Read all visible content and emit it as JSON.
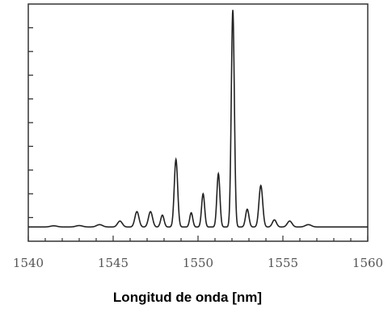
{
  "chart_data": {
    "type": "line",
    "title": "",
    "xlabel": "Longitud de onda [nm]",
    "ylabel": "",
    "xlim": [
      1540,
      1560
    ],
    "ylim": [
      0,
      1
    ],
    "grid": false,
    "x_ticks": [
      1540,
      1545,
      1550,
      1555,
      1560
    ],
    "x_tick_labels": [
      "1540",
      "1545",
      "1550",
      "1555",
      "1560"
    ],
    "y_tick_count": 9,
    "baseline": 0.06,
    "series": [
      {
        "color": "#222222",
        "peaks": [
          {
            "x": 1541.5,
            "y": 0.065,
            "w": 0.2
          },
          {
            "x": 1543.0,
            "y": 0.066,
            "w": 0.2
          },
          {
            "x": 1544.2,
            "y": 0.07,
            "w": 0.18
          },
          {
            "x": 1545.4,
            "y": 0.085,
            "w": 0.14
          },
          {
            "x": 1546.4,
            "y": 0.125,
            "w": 0.12
          },
          {
            "x": 1547.2,
            "y": 0.125,
            "w": 0.12
          },
          {
            "x": 1547.9,
            "y": 0.11,
            "w": 0.1
          },
          {
            "x": 1548.7,
            "y": 0.345,
            "w": 0.1
          },
          {
            "x": 1549.6,
            "y": 0.12,
            "w": 0.09
          },
          {
            "x": 1550.3,
            "y": 0.2,
            "w": 0.09
          },
          {
            "x": 1551.2,
            "y": 0.285,
            "w": 0.09
          },
          {
            "x": 1552.05,
            "y": 0.975,
            "w": 0.09
          },
          {
            "x": 1552.9,
            "y": 0.135,
            "w": 0.1
          },
          {
            "x": 1553.7,
            "y": 0.235,
            "w": 0.11
          },
          {
            "x": 1554.5,
            "y": 0.09,
            "w": 0.12
          },
          {
            "x": 1555.4,
            "y": 0.085,
            "w": 0.14
          },
          {
            "x": 1556.5,
            "y": 0.07,
            "w": 0.18
          }
        ]
      }
    ]
  }
}
